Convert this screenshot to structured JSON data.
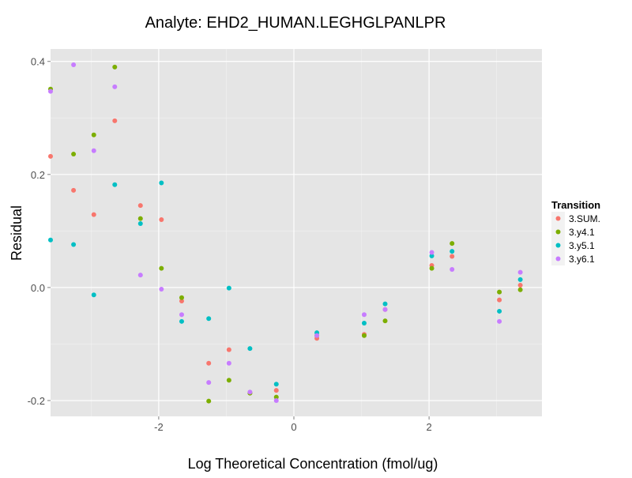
{
  "chart_data": {
    "type": "scatter",
    "title": "Analyte: EHD2_HUMAN.LEGHGLPANLPR",
    "xlabel": "Log Theoretical Concentration (fmol/ug)",
    "ylabel": "Residual",
    "xlim": [
      -3.6,
      3.67
    ],
    "ylim": [
      -0.228,
      0.422
    ],
    "xticks": [
      -2,
      0,
      2
    ],
    "xtick_labels": [
      "-2",
      "0",
      "2"
    ],
    "yticks": [
      -0.2,
      0.0,
      0.2,
      0.4
    ],
    "ytick_labels": [
      "-0.2",
      "0.0",
      "0.2",
      "0.4"
    ],
    "grid": true,
    "legend": {
      "title": "Transition",
      "placement": "right"
    },
    "x": [
      -3.6,
      -3.26,
      -2.96,
      -2.65,
      -2.27,
      -1.96,
      -1.66,
      -1.26,
      -0.96,
      -0.65,
      -0.26,
      0.34,
      1.04,
      1.35,
      2.04,
      2.34,
      3.04,
      3.35
    ],
    "series": [
      {
        "name": "3.SUM.",
        "color": "#F8766D",
        "values": [
          0.232,
          0.172,
          0.129,
          0.295,
          0.145,
          0.12,
          -0.024,
          -0.134,
          -0.11,
          -0.186,
          -0.182,
          -0.09,
          -0.083,
          -0.039,
          0.039,
          0.055,
          -0.022,
          0.004
        ]
      },
      {
        "name": "3.y4.1",
        "color": "#7CAE00",
        "values": [
          0.351,
          0.236,
          0.27,
          0.39,
          0.122,
          0.034,
          -0.018,
          -0.201,
          -0.164,
          -0.187,
          -0.194,
          -0.085,
          -0.085,
          -0.059,
          0.034,
          0.078,
          -0.008,
          -0.004
        ]
      },
      {
        "name": "3.y5.1",
        "color": "#00BFC4",
        "values": [
          0.084,
          0.076,
          -0.013,
          0.182,
          0.113,
          0.185,
          -0.06,
          -0.055,
          -0.001,
          -0.108,
          -0.171,
          -0.08,
          -0.063,
          -0.029,
          0.056,
          0.064,
          -0.042,
          0.014
        ]
      },
      {
        "name": "3.y6.1",
        "color": "#C77CFF",
        "values": [
          0.347,
          0.394,
          0.242,
          0.355,
          0.022,
          -0.003,
          -0.048,
          -0.168,
          -0.134,
          -0.185,
          -0.2,
          -0.085,
          -0.048,
          -0.039,
          0.062,
          0.032,
          -0.06,
          0.027
        ]
      }
    ]
  }
}
